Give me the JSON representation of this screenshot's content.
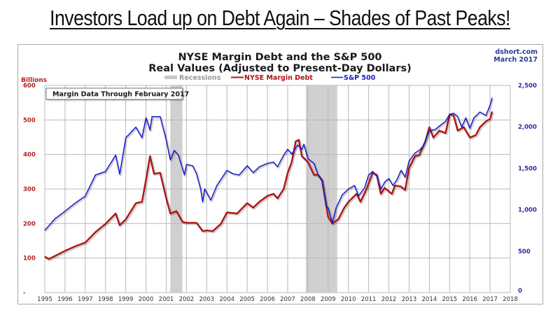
{
  "headline": "Investors Load up on Debt Again – Shades of Past Peaks!",
  "chart_data": {
    "type": "line",
    "title": "NYSE Margin Debt and the S&P 500",
    "subtitle": "Real Values (Adjusted to Present-Day Dollars)",
    "source": "dshort.com",
    "source_date": "March 2017",
    "annotation": "Margin Data Through February 2017",
    "left_axis_label": "Billions",
    "legend_position": "top-center",
    "legend": [
      {
        "name": "Recessions",
        "kind": "band",
        "color": "#c8c8c8"
      },
      {
        "name": "NYSE Margin Debt",
        "kind": "line",
        "color": "#b01515"
      },
      {
        "name": "S&P 500",
        "kind": "line",
        "color": "#1a1acc"
      }
    ],
    "xlim": [
      1995,
      2018
    ],
    "xticks": [
      "1995",
      "1996",
      "1997",
      "1998",
      "1999",
      "2000",
      "2001",
      "2002",
      "2003",
      "2004",
      "2005",
      "2006",
      "2007",
      "2008",
      "2009",
      "2010",
      "2011",
      "2012",
      "2013",
      "2014",
      "2015",
      "2016",
      "2017",
      "2018"
    ],
    "ylim_left": [
      0,
      600
    ],
    "yticks_left": [
      "-",
      "100",
      "200",
      "300",
      "400",
      "500",
      "600"
    ],
    "ylim_right": [
      0,
      2500
    ],
    "yticks_right": [
      "0",
      "500",
      "1,000",
      "1,500",
      "2,000",
      "2,500"
    ],
    "grid": true,
    "recessions": [
      {
        "start": 2001.2,
        "end": 2001.8
      },
      {
        "start": 2007.9,
        "end": 2009.45
      }
    ],
    "series": [
      {
        "name": "NYSE Margin Debt",
        "axis": "left",
        "color": "#b01515",
        "x": [
          1995.0,
          1995.2,
          1995.5,
          1996.0,
          1996.5,
          1997.0,
          1997.5,
          1998.0,
          1998.5,
          1998.7,
          1999.0,
          1999.5,
          1999.8,
          2000.0,
          2000.2,
          2000.4,
          2000.7,
          2001.0,
          2001.2,
          2001.5,
          2001.8,
          2002.0,
          2002.5,
          2002.8,
          2003.0,
          2003.3,
          2003.7,
          2004.0,
          2004.5,
          2005.0,
          2005.3,
          2005.6,
          2006.0,
          2006.3,
          2006.5,
          2006.8,
          2007.0,
          2007.2,
          2007.4,
          2007.55,
          2007.7,
          2008.0,
          2008.3,
          2008.5,
          2008.7,
          2008.9,
          2009.0,
          2009.2,
          2009.5,
          2009.8,
          2010.0,
          2010.4,
          2010.6,
          2010.9,
          2011.2,
          2011.4,
          2011.6,
          2011.8,
          2012.0,
          2012.15,
          2012.3,
          2012.6,
          2012.8,
          2013.0,
          2013.3,
          2013.5,
          2013.8,
          2014.0,
          2014.2,
          2014.5,
          2014.8,
          2015.0,
          2015.2,
          2015.4,
          2015.7,
          2016.0,
          2016.3,
          2016.5,
          2016.8,
          2017.0,
          2017.1
        ],
        "values": [
          104,
          97,
          106,
          121,
          134,
          145,
          175,
          199,
          229,
          195,
          212,
          259,
          263,
          327,
          395,
          344,
          347,
          273,
          229,
          236,
          205,
          202,
          202,
          178,
          180,
          178,
          199,
          232,
          229,
          259,
          246,
          263,
          280,
          286,
          273,
          300,
          347,
          378,
          438,
          442,
          395,
          378,
          341,
          341,
          324,
          253,
          219,
          200,
          212,
          246,
          263,
          286,
          263,
          300,
          347,
          341,
          286,
          303,
          293,
          286,
          310,
          307,
          297,
          361,
          395,
          398,
          438,
          479,
          449,
          469,
          462,
          516,
          513,
          469,
          479,
          449,
          456,
          479,
          496,
          503,
          524
        ]
      },
      {
        "name": "S&P 500",
        "axis": "right",
        "color": "#1a1acc",
        "x": [
          1995.0,
          1995.5,
          1996.0,
          1996.5,
          1997.0,
          1997.5,
          1998.0,
          1998.5,
          1998.7,
          1999.0,
          1999.5,
          1999.8,
          2000.0,
          2000.2,
          2000.3,
          2000.7,
          2001.0,
          2001.2,
          2001.4,
          2001.6,
          2001.9,
          2002.0,
          2002.3,
          2002.5,
          2002.7,
          2002.8,
          2002.9,
          2003.2,
          2003.5,
          2004.0,
          2004.3,
          2004.6,
          2005.0,
          2005.3,
          2005.6,
          2006.0,
          2006.3,
          2006.5,
          2006.8,
          2007.0,
          2007.2,
          2007.5,
          2007.7,
          2007.8,
          2008.0,
          2008.3,
          2008.5,
          2008.7,
          2008.9,
          2009.0,
          2009.2,
          2009.4,
          2009.7,
          2010.0,
          2010.3,
          2010.5,
          2010.8,
          2011.0,
          2011.2,
          2011.4,
          2011.6,
          2011.8,
          2012.0,
          2012.2,
          2012.4,
          2012.6,
          2012.8,
          2013.0,
          2013.3,
          2013.5,
          2013.7,
          2014.0,
          2014.3,
          2014.5,
          2014.8,
          2015.0,
          2015.2,
          2015.4,
          2015.6,
          2015.8,
          2016.0,
          2016.2,
          2016.5,
          2016.8,
          2017.0,
          2017.1
        ],
        "values": [
          752,
          890,
          982,
          1080,
          1165,
          1419,
          1461,
          1658,
          1427,
          1869,
          1996,
          1869,
          2109,
          1960,
          2123,
          2123,
          1841,
          1602,
          1715,
          1658,
          1419,
          1546,
          1531,
          1433,
          1250,
          1095,
          1250,
          1115,
          1292,
          1475,
          1433,
          1419,
          1531,
          1447,
          1518,
          1560,
          1574,
          1518,
          1658,
          1729,
          1672,
          1780,
          1729,
          1790,
          1616,
          1560,
          1419,
          1362,
          1039,
          1025,
          842,
          1025,
          1180,
          1250,
          1292,
          1166,
          1264,
          1419,
          1461,
          1405,
          1250,
          1334,
          1377,
          1292,
          1362,
          1475,
          1391,
          1588,
          1686,
          1715,
          1771,
          1954,
          1968,
          2010,
          2066,
          2151,
          2165,
          2123,
          1996,
          2109,
          1982,
          2109,
          2179,
          2137,
          2263,
          2348
        ]
      }
    ]
  }
}
